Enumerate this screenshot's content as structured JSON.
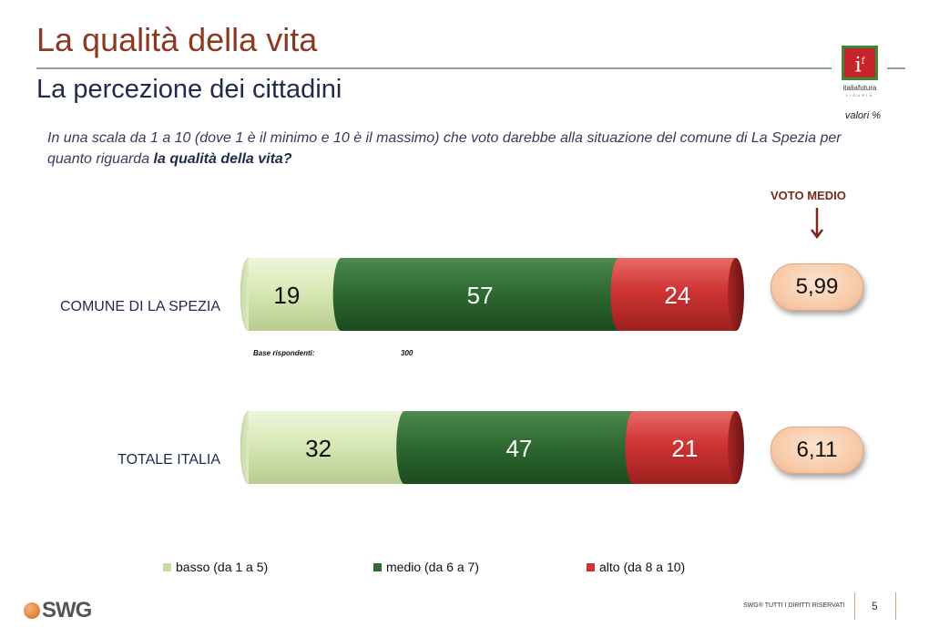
{
  "header": {
    "title": "La qualità della vita",
    "subtitle": "La percezione dei cittadini",
    "values_note": "valori %"
  },
  "logo": {
    "mark": "i",
    "superscript": "f",
    "name": "italiafutura",
    "region": "LIGURIA"
  },
  "question": {
    "text": "In una scala da 1 a 10 (dove 1 è il minimo e 10 è il massimo) che voto darebbe alla situazione del comune di La Spezia per quanto riguarda ",
    "emphasis": "la qualità della vita?"
  },
  "voto_medio": {
    "label": "VOTO MEDIO",
    "values": [
      "5,99",
      "6,11"
    ]
  },
  "base": {
    "label": "Base rispondenti:",
    "value": "300"
  },
  "chart_data": {
    "type": "bar",
    "orientation": "horizontal",
    "stacked": true,
    "categories": [
      "COMUNE DI LA SPEZIA",
      "TOTALE ITALIA"
    ],
    "series": [
      {
        "name": "basso (da 1 a 5)",
        "values": [
          19,
          32
        ],
        "color": "#d6e6b2"
      },
      {
        "name": "medio (da 6 a 7)",
        "values": [
          57,
          47
        ],
        "color": "#2f6b32"
      },
      {
        "name": "alto (da 8 a 10)",
        "values": [
          24,
          21
        ],
        "color": "#cf3434"
      }
    ],
    "xlim": [
      0,
      100
    ],
    "grid": false,
    "legend_position": "bottom"
  },
  "footer": {
    "brand": "SWG",
    "rights": "SWG® TUTTI I DIRITTI RISERVATI",
    "page": "5"
  },
  "colors": {
    "title": "#8b3a22",
    "accent": "#7a2a1a",
    "pill": "#f7c7a4"
  }
}
